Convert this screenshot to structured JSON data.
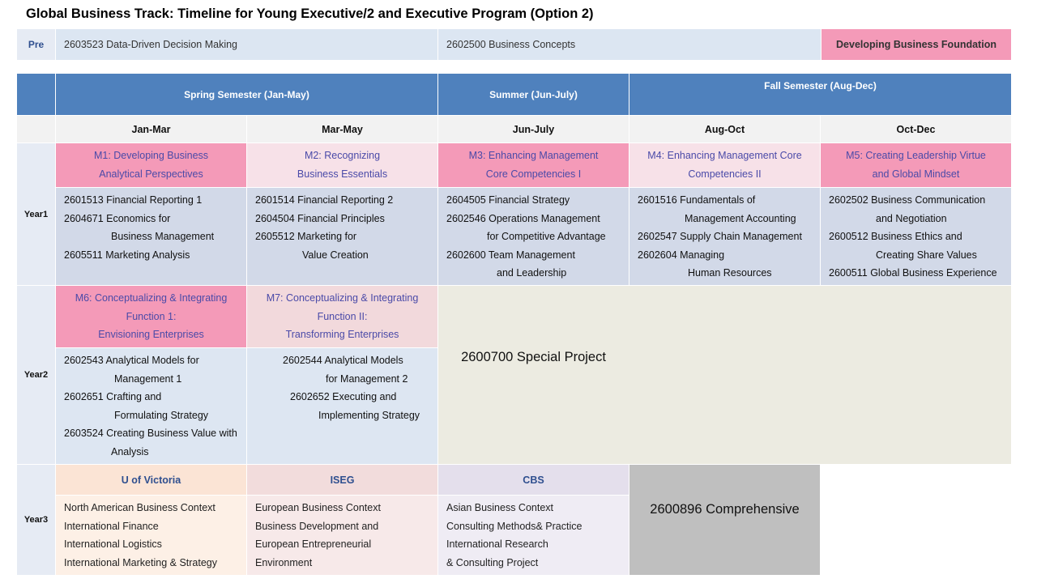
{
  "title": "Global Business Track: Timeline for Young Executive/2 and Executive Program (Option 2)",
  "pre": {
    "label": "Pre",
    "course1": "2603523 Data-Driven Decision Making",
    "course2": "2602500 Business Concepts",
    "foundation": "Developing Business Foundation"
  },
  "semesters": {
    "spring": "Spring Semester (Jan-May)",
    "summer": "Summer (Jun-July)",
    "fall": "Fall Semester (Aug-Dec)"
  },
  "periods": [
    "Jan-Mar",
    "Mar-May",
    "Jun-July",
    "Aug-Oct",
    "Oct-Dec"
  ],
  "year1": {
    "label": "Year1",
    "modules": [
      [
        "M1: Developing Business",
        "Analytical Perspectives"
      ],
      [
        "M2: Recognizing",
        "Business Essentials"
      ],
      [
        "M3: Enhancing Management",
        "Core Competencies I"
      ],
      [
        "M4: Enhancing Management Core",
        "Competencies II"
      ],
      [
        "M5: Creating Leadership Virtue",
        "and Global Mindset"
      ]
    ],
    "courses": [
      [
        "2601513 Financial Reporting 1",
        "2604671 Economics for",
        "Business Management",
        "2605511 Marketing Analysis"
      ],
      [
        "2601514 Financial Reporting 2",
        "2604504 Financial Principles",
        "2605512 Marketing for",
        "Value Creation"
      ],
      [
        "2604505 Financial Strategy",
        "2602546 Operations Management",
        "for Competitive Advantage",
        "2602600 Team Management",
        "and Leadership"
      ],
      [
        "2601516 Fundamentals of",
        "Management Accounting",
        "2602547 Supply Chain Management",
        "2602604 Managing",
        "Human Resources"
      ],
      [
        "2602502 Business Communication",
        "and Negotiation",
        "2600512 Business Ethics and",
        "Creating Share Values",
        "2600511 Global Business Experience"
      ]
    ]
  },
  "year2": {
    "label": "Year2",
    "modules": [
      [
        "M6: Conceptualizing & Integrating",
        "Function 1:",
        "Envisioning Enterprises"
      ],
      [
        "M7: Conceptualizing & Integrating",
        "Function II:",
        "Transforming Enterprises"
      ]
    ],
    "courses": [
      [
        "2602543 Analytical Models for",
        "Management 1",
        "2602651 Crafting and",
        "Formulating Strategy",
        "2603524 Creating Business Value with",
        "Analysis"
      ],
      [
        "2602544 Analytical Models",
        "for Management 2",
        "2602652 Executing and",
        "Implementing Strategy"
      ]
    ],
    "special_project": "2600700 Special Project"
  },
  "year3": {
    "label": "Year3",
    "schools": [
      "U of Victoria",
      "ISEG",
      "CBS"
    ],
    "courses": [
      [
        "North American Business Context",
        "International Finance",
        "International Logistics",
        "International Marketing & Strategy"
      ],
      [
        "European Business Context",
        "Business Development and",
        "European Entrepreneurial",
        "Environment"
      ],
      [
        "Asian Business Context",
        "Consulting Methods& Practice",
        "International Research",
        "& Consulting Project"
      ]
    ],
    "comprehensive": "2600896 Comprehensive"
  },
  "colors": {
    "header_blue": "#4f81bd",
    "module_pink": "#f49ab8",
    "course_blue": "#d2d9e8",
    "beige": "#ecebe1",
    "comprehensive_gray": "#bfbfbf"
  }
}
